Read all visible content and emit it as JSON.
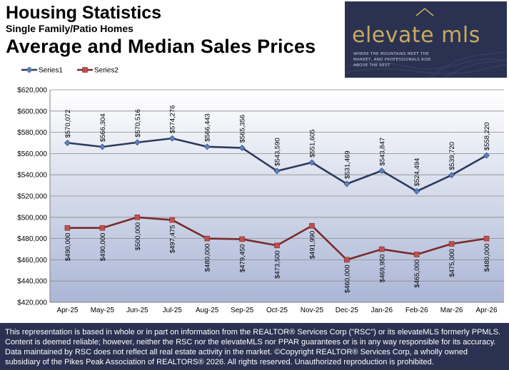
{
  "header": {
    "title": "Housing Statistics",
    "subtitle": "Single Family/Patio Homes",
    "heading": "Average and Median Sales Prices"
  },
  "logo": {
    "name": "elevate mls",
    "tagline": "WHERE THE MOUNTAINS MEET THE MARKET, AND PROFESSIONALS RISE ABOVE THE REST"
  },
  "footer": {
    "disclaimer": "This representation is based in whole or in part on information from the REALTOR® Services Corp (\"RSC\") or its elevateMLS formerly PPMLS. Content is deemed reliable; however, neither the RSC nor the elevateMLS nor PPAR guarantees or is in any way responsible for its accuracy. Data maintained by RSC does not reflect all real estate activity in the market.  ©Copyright REALTOR® Services Corp, a wholly owned subsidiary of the Pikes Peak Association of REALTORS®  2026. All rights reserved.  Unauthorized reproduction is prohibited."
  },
  "colors": {
    "series1": "#2d3a5e",
    "series1_marker": "#5b84c4",
    "series2": "#7a2b2b",
    "series2_marker": "#c0504d",
    "brand_navy": "#2b3251",
    "brand_gold": "#c8aa60"
  },
  "chart_data": {
    "type": "line",
    "categories": [
      "Apr-25",
      "May-25",
      "Jun-25",
      "Jul-25",
      "Aug-25",
      "Sep-25",
      "Oct-25",
      "Nov-25",
      "Dec-25",
      "Jan-26",
      "Feb-26",
      "Mar-26",
      "Apr-26"
    ],
    "series": [
      {
        "name": "Series1",
        "values": [
          570072,
          566304,
          570516,
          574276,
          566443,
          565356,
          543590,
          551605,
          531469,
          543847,
          524494,
          539720,
          558220
        ],
        "labels": [
          "$570,072",
          "$566,304",
          "$570,516",
          "$574,276",
          "$566,443",
          "$565,356",
          "$543,590",
          "$551,605",
          "$531,469",
          "$543,847",
          "$524,494",
          "$539,720",
          "$558,220"
        ]
      },
      {
        "name": "Series2",
        "values": [
          490000,
          490000,
          500000,
          497475,
          480000,
          479450,
          473500,
          491990,
          460000,
          469950,
          465000,
          475000,
          480000
        ],
        "labels": [
          "$490,000",
          "$490,000",
          "$500,000",
          "$497,475",
          "$480,000",
          "$479,450",
          "$473,500",
          "$491,990",
          "$460,000",
          "$469,950",
          "$465,000",
          "$475,000",
          "$480,000"
        ]
      }
    ],
    "ylim": [
      420000,
      620000
    ],
    "yticks": [
      "$420,000",
      "$440,000",
      "$460,000",
      "$480,000",
      "$500,000",
      "$520,000",
      "$540,000",
      "$560,000",
      "$580,000",
      "$600,000",
      "$620,000"
    ],
    "grid": true,
    "legend": "top-left"
  }
}
